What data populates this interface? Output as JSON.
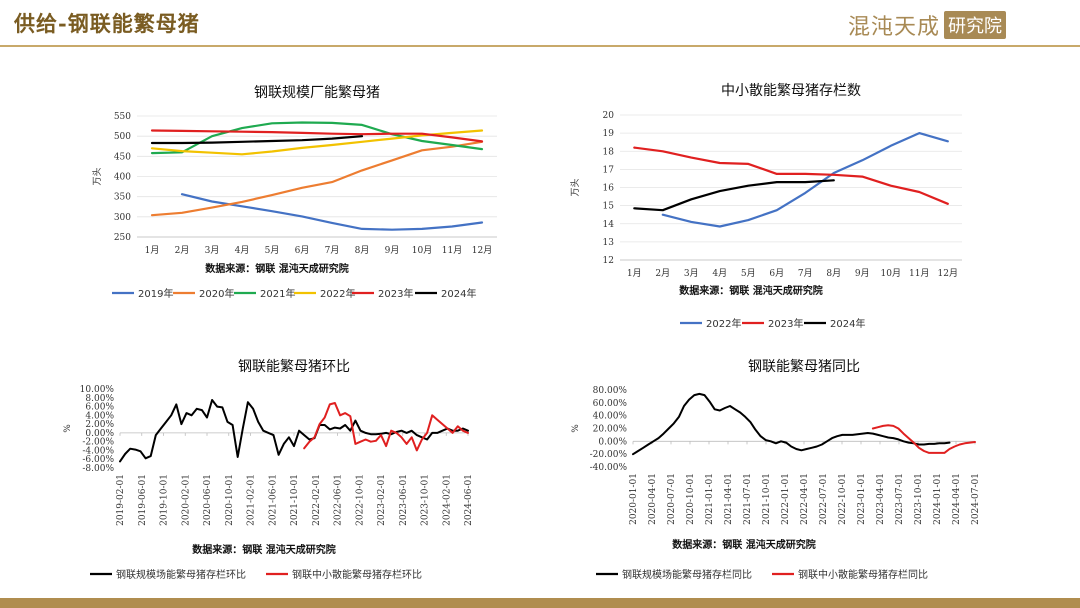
{
  "header": {
    "title": "供给-钢联能繁母猪",
    "logo_main": "混沌天成",
    "logo_box": "研究院"
  },
  "colors": {
    "header_text": "#7a5c22",
    "accent_gold": "#b08d4f",
    "s2019": "#4472c4",
    "s2020": "#ed7d31",
    "s2021": "#1faa50",
    "s2022": "#f2c200",
    "s2023": "#e02020",
    "s2024": "#000000"
  },
  "chart_data": [
    {
      "id": "c1",
      "type": "line",
      "title": "钢联规模厂能繁母猪",
      "ylabel": "万头",
      "source": "数据来源：钢联 混沌天成研究院",
      "categories": [
        "1月",
        "2月",
        "3月",
        "4月",
        "5月",
        "6月",
        "7月",
        "8月",
        "9月",
        "10月",
        "11月",
        "12月"
      ],
      "yticks": [
        250,
        300,
        350,
        400,
        450,
        500,
        550
      ],
      "ylim": [
        250,
        550
      ],
      "legend_position": "bottom",
      "series": [
        {
          "name": "2019年",
          "color": "#4472c4",
          "values": [
            null,
            356,
            338,
            326,
            314,
            301,
            285,
            270,
            268,
            270,
            276,
            286
          ]
        },
        {
          "name": "2020年",
          "color": "#ed7d31",
          "values": [
            304,
            310,
            323,
            337,
            354,
            372,
            386,
            415,
            440,
            465,
            474,
            486
          ]
        },
        {
          "name": "2021年",
          "color": "#1faa50",
          "values": [
            458,
            460,
            500,
            520,
            532,
            534,
            533,
            528,
            505,
            488,
            478,
            468
          ]
        },
        {
          "name": "2022年",
          "color": "#f2c200",
          "values": [
            470,
            463,
            459,
            455,
            462,
            471,
            478,
            486,
            494,
            502,
            508,
            514
          ]
        },
        {
          "name": "2023年",
          "color": "#e02020",
          "values": [
            514,
            513,
            512,
            511,
            510,
            508,
            506,
            505,
            506,
            506,
            497,
            487
          ]
        },
        {
          "name": "2024年",
          "color": "#000000",
          "values": [
            483,
            483,
            484,
            486,
            488,
            490,
            494,
            500,
            null,
            null,
            null,
            null
          ]
        }
      ]
    },
    {
      "id": "c2",
      "type": "line",
      "title": "中小散能繁母猪存栏数",
      "ylabel": "万头",
      "source": "数据来源：钢联 混沌天成研究院",
      "categories": [
        "1月",
        "2月",
        "3月",
        "4月",
        "5月",
        "6月",
        "7月",
        "8月",
        "9月",
        "10月",
        "11月",
        "12月"
      ],
      "yticks": [
        12,
        13,
        14,
        15,
        16,
        17,
        18,
        19,
        20
      ],
      "ylim": [
        12,
        20
      ],
      "legend_position": "bottom",
      "series": [
        {
          "name": "2022年",
          "color": "#4472c4",
          "values": [
            null,
            14.5,
            14.1,
            13.85,
            14.2,
            14.75,
            15.7,
            16.8,
            17.5,
            18.3,
            19.0,
            18.55
          ]
        },
        {
          "name": "2023年",
          "color": "#e02020",
          "values": [
            18.2,
            18.0,
            17.65,
            17.35,
            17.3,
            16.75,
            16.75,
            16.7,
            16.6,
            16.1,
            15.75,
            15.1
          ]
        },
        {
          "name": "2024年",
          "color": "#000000",
          "values": [
            14.85,
            14.75,
            15.35,
            15.8,
            16.1,
            16.3,
            16.3,
            16.4,
            null,
            null,
            null,
            null
          ]
        }
      ]
    },
    {
      "id": "c3",
      "type": "line",
      "title": "钢联能繁母猪环比",
      "ylabel": "%",
      "source": "数据来源：钢联 混沌天成研究院",
      "xticks": [
        "2019-02-01",
        "2019-06-01",
        "2019-10-01",
        "2020-02-01",
        "2020-06-01",
        "2020-10-01",
        "2021-02-01",
        "2021-06-01",
        "2021-10-01",
        "2022-02-01",
        "2022-06-01",
        "2022-10-01",
        "2023-02-01",
        "2023-06-01",
        "2023-10-01",
        "2024-02-01",
        "2024-06-01"
      ],
      "yticks": [
        "10.00%",
        "8.00%",
        "6.00%",
        "4.00%",
        "2.00%",
        "0.00%",
        "-2.00%",
        "-4.00%",
        "-6.00%",
        "-8.00%"
      ],
      "ylim": [
        -8,
        10
      ],
      "legend_position": "bottom",
      "series": [
        {
          "name": "钢联规模场能繁母猪存栏环比",
          "color": "#000000",
          "values": [
            -6.5,
            -4.8,
            -3.6,
            -3.8,
            -4.2,
            -5.8,
            -5.3,
            -0.5,
            1.0,
            2.5,
            4.0,
            6.5,
            2.0,
            4.5,
            4.0,
            5.5,
            5.2,
            3.5,
            7.5,
            6.0,
            5.8,
            2.5,
            1.8,
            -5.5,
            1.0,
            7.0,
            5.5,
            2.5,
            0.5,
            0.0,
            -0.5,
            -5.0,
            -2.5,
            -1.0,
            -3.0,
            0.5,
            -0.5,
            -1.5,
            -1.2,
            1.8,
            1.8,
            0.8,
            1.2,
            1.0,
            1.8,
            0.5,
            2.8,
            0.5,
            0.0,
            -0.3,
            -0.3,
            -0.2,
            0.0,
            -0.3,
            0.2,
            0.5,
            0.0,
            0.5,
            -0.5,
            -1.0,
            -1.5,
            0.0,
            0.0,
            0.5,
            1.0,
            0.5,
            0.5,
            1.0,
            0.5
          ]
        },
        {
          "name": "钢联中小散能繁母猪存栏环比",
          "color": "#e02020",
          "values": [
            null,
            null,
            null,
            null,
            null,
            null,
            null,
            null,
            null,
            null,
            null,
            null,
            null,
            null,
            null,
            null,
            null,
            null,
            null,
            null,
            null,
            null,
            null,
            null,
            null,
            null,
            null,
            null,
            null,
            null,
            null,
            null,
            null,
            null,
            null,
            null,
            -3.5,
            -2.0,
            -1.0,
            2.0,
            3.5,
            6.5,
            6.8,
            4.0,
            4.5,
            3.8,
            -2.5,
            -2.0,
            -1.5,
            -2.0,
            -1.8,
            -0.5,
            -3.0,
            0.5,
            0.0,
            -1.0,
            -2.5,
            -1.0,
            -4.0,
            -1.5,
            0.0,
            4.0,
            3.0,
            2.0,
            1.0,
            0.0,
            1.5,
            0.5,
            0.0
          ]
        }
      ]
    },
    {
      "id": "c4",
      "type": "line",
      "title": "钢联能繁母猪同比",
      "ylabel": "%",
      "source": "数据来源：钢联 混沌天成研究院",
      "xticks": [
        "2020-01-01",
        "2020-04-01",
        "2020-07-01",
        "2020-10-01",
        "2021-01-01",
        "2021-04-01",
        "2021-07-01",
        "2021-10-01",
        "2022-01-01",
        "2022-04-01",
        "2022-07-01",
        "2022-10-01",
        "2023-01-01",
        "2023-04-01",
        "2023-07-01",
        "2023-10-01",
        "2024-01-01",
        "2024-04-01",
        "2024-07-01"
      ],
      "yticks": [
        "80.00%",
        "60.00%",
        "40.00%",
        "20.00%",
        "0.00%",
        "-20.00%",
        "-40.00%"
      ],
      "ylim": [
        -40,
        80
      ],
      "legend_position": "bottom",
      "series": [
        {
          "name": "钢联规模场能繁母猪存栏同比",
          "color": "#000000",
          "values": [
            -20,
            -15,
            -10,
            -5,
            0,
            5,
            12,
            20,
            28,
            38,
            55,
            65,
            72,
            74,
            72,
            62,
            50,
            48,
            52,
            55,
            50,
            45,
            38,
            30,
            18,
            8,
            2,
            0,
            -3,
            0,
            -2,
            -8,
            -12,
            -14,
            -12,
            -10,
            -8,
            -5,
            0,
            5,
            8,
            10,
            10,
            10,
            11,
            12,
            13,
            12,
            10,
            8,
            6,
            5,
            3,
            0,
            -2,
            -3,
            -5,
            -5,
            -4,
            -4,
            -3,
            -3,
            -2
          ]
        },
        {
          "name": "钢联中小散能繁母猪存栏同比",
          "color": "#e02020",
          "values": [
            null,
            null,
            null,
            null,
            null,
            null,
            null,
            null,
            null,
            null,
            null,
            null,
            null,
            null,
            null,
            null,
            null,
            null,
            null,
            null,
            null,
            null,
            null,
            null,
            null,
            null,
            null,
            null,
            null,
            null,
            null,
            null,
            null,
            null,
            null,
            null,
            null,
            null,
            null,
            null,
            null,
            null,
            null,
            null,
            null,
            null,
            null,
            20,
            22,
            24,
            25,
            24,
            20,
            12,
            5,
            -2,
            -10,
            -15,
            -18,
            -18,
            -18,
            -18,
            -12,
            -8,
            -5,
            -3,
            -2,
            -1
          ]
        }
      ]
    }
  ]
}
